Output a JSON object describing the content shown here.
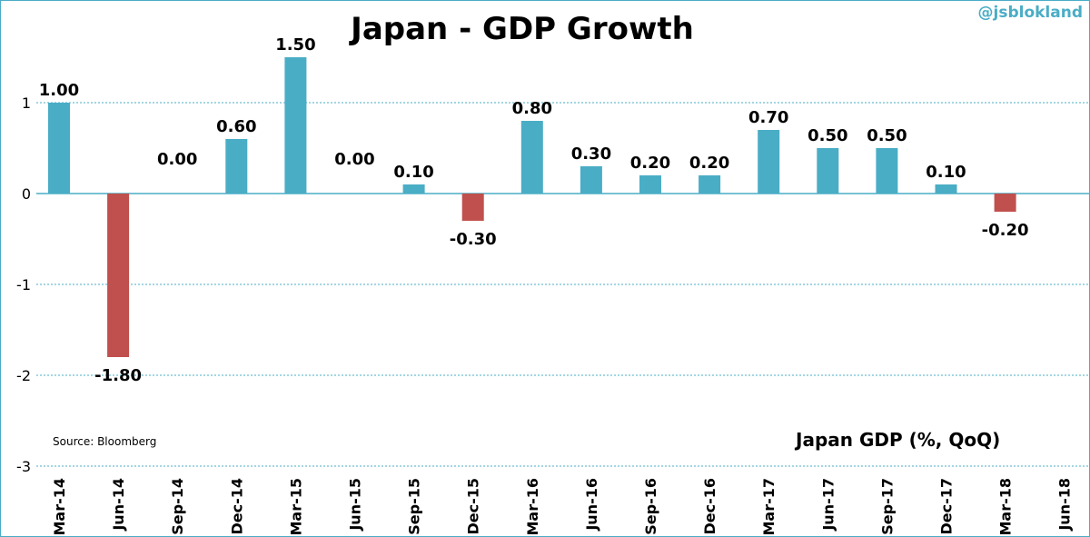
{
  "chart_data": {
    "type": "bar",
    "title": "Japan - GDP Growth",
    "watermark": "@jsblokland",
    "source": "Source:  Bloomberg",
    "legend_label": "Japan GDP (%, QoQ)",
    "categories": [
      "Mar-14",
      "Jun-14",
      "Sep-14",
      "Dec-14",
      "Mar-15",
      "Jun-15",
      "Sep-15",
      "Dec-15",
      "Mar-16",
      "Jun-16",
      "Sep-16",
      "Dec-16",
      "Mar-17",
      "Jun-17",
      "Sep-17",
      "Dec-17",
      "Mar-18",
      "Jun-18"
    ],
    "values": [
      1.0,
      -1.8,
      0.0,
      0.6,
      1.5,
      0.0,
      0.1,
      -0.3,
      0.8,
      0.3,
      0.2,
      0.2,
      0.7,
      0.5,
      0.5,
      0.1,
      -0.2,
      null
    ],
    "value_labels": [
      "1.00",
      "-1.80",
      "0.00",
      "0.60",
      "1.50",
      "0.00",
      "0.10",
      "-0.30",
      "0.80",
      "0.30",
      "0.20",
      "0.20",
      "0.70",
      "0.50",
      "0.50",
      "0.10",
      "-0.20",
      ""
    ],
    "yticks": [
      "1",
      "0",
      "-1",
      "-2",
      "-3"
    ],
    "ylim": [
      -3,
      1.9
    ],
    "grid": true,
    "colors": {
      "positive": "#4aadc6",
      "negative": "#c0504d",
      "grid": "#4aadc6",
      "axis": "#4aadc6",
      "frame": "#4aadc6"
    }
  }
}
